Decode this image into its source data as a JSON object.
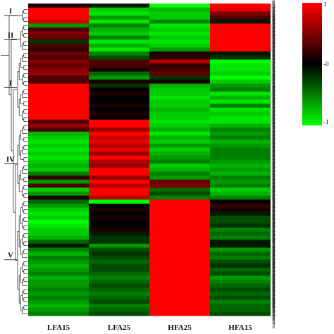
{
  "chart_data": {
    "type": "heatmap",
    "title": "",
    "xlabel": "",
    "ylabel": "",
    "columns": [
      "LFA15",
      "LFA25",
      "HFA25",
      "HFA15"
    ],
    "row_labels": [
      "BnaC08g37250D",
      "BnaA09g06420D",
      "BnaC09g05430D",
      "BnaA10g08810D",
      "BnaA02g06920D",
      "BnaC02g35460D",
      "BnaA02g33270D",
      "BnaA09g36170D",
      "BnaC05g44170D",
      "BnaCnng53370D",
      "BnaA02g33480D",
      "BnaC01g02940D",
      "BnaA02g38000D",
      "BnaA03g12790D",
      "BnaC05g33880D",
      "BnaA02g09410D",
      "BnaA01g07770D",
      "BnaA03g33420D",
      "BnaA03g21340D",
      "BnaA01g18440D",
      "BnaA03g09230D",
      "BnaA06g39230D",
      "BnaA06g27940D",
      "BnaA08g05600D",
      "BnaA02g01050D",
      "BnaA10g22600D",
      "BnaC02g40590D",
      "BnaA03g39650D",
      "BnaA01g02250D",
      "BnaA07g31260D",
      "BnaCnng26020D",
      "BnaC07g12530D",
      "BnaA05g28420D",
      "BnaC08g28410D",
      "BnaA04g24870D",
      "BnaA03g24650D",
      "BnaA03g14300D",
      "BnaA06g14920D",
      "BnaA03g32640D",
      "BnaA03g11220D",
      "BnaC03g13010D",
      "BnaA05g12670D",
      "BnaA05g27230D",
      "BnaA05g18010D",
      "BnaA02g30350D",
      "BnaA05g15470D",
      "BnaC06g23860D",
      "BnaA09g18680D",
      "BnaA03g50700D",
      "BnaA06g10260D",
      "BnaA05g12480D",
      "BnaC05g01950D",
      "BnaA09g50110D",
      "BnaA01g53020D",
      "BnaC09g31890D",
      "BnaC01g03290D",
      "BnaC01g07360D",
      "BnaA01g08100D",
      "BnaA10g01260D",
      "BnaA01g09240D",
      "BnaAnng19740D",
      "BnaA03g26380D",
      "BnaA08g43510D",
      "BnaA06g10700D",
      "BnaC09g47240D",
      "BnaA03g26920D",
      "BnaA07g24440D",
      "BnaC03g08600D",
      "BnaA06g06080D",
      "BnaA06g02030D",
      "BnaC08g37100D",
      "BnaC02g37100D",
      "BnaA07g24070D",
      "BnaC03g44800D",
      "BnaA05g28720D",
      "BnaA08g04430D",
      "BnaC03g35780D",
      "BnaA04g11240D"
    ],
    "values": [
      [
        0.1,
        -0.1,
        -1.0,
        1.0
      ],
      [
        1.0,
        -0.8,
        -0.7,
        0.9
      ],
      [
        1.0,
        -0.9,
        -0.8,
        0.5
      ],
      [
        1.0,
        -0.6,
        -0.8,
        0.3
      ],
      [
        0.8,
        -0.9,
        -0.5,
        -0.1
      ],
      [
        -0.6,
        -0.5,
        -0.9,
        1.0
      ],
      [
        0.3,
        -0.7,
        -0.8,
        1.0
      ],
      [
        0.5,
        -0.8,
        -0.9,
        1.0
      ],
      [
        0.4,
        -0.5,
        -0.8,
        1.0
      ],
      [
        -0.2,
        -0.9,
        -0.9,
        1.0
      ],
      [
        0.3,
        -0.7,
        -0.8,
        1.0
      ],
      [
        0.2,
        -0.9,
        -0.6,
        1.0
      ],
      [
        0.4,
        -0.5,
        0.1,
        -0.1
      ],
      [
        0.3,
        -0.3,
        0.2,
        -0.2
      ],
      [
        0.5,
        0.3,
        0.7,
        -1.0
      ],
      [
        0.4,
        0.3,
        0.2,
        -0.9
      ],
      [
        0.5,
        0.1,
        0.3,
        -0.9
      ],
      [
        0.6,
        -0.4,
        0.4,
        -0.8
      ],
      [
        0.3,
        -0.6,
        -0.2,
        -1.0
      ],
      [
        0.3,
        0.1,
        0.1,
        -0.8
      ],
      [
        1.0,
        -0.2,
        -0.7,
        -0.6
      ],
      [
        1.0,
        0.0,
        -0.8,
        -0.5
      ],
      [
        1.0,
        0.1,
        -0.8,
        -0.9
      ],
      [
        1.0,
        0.0,
        -0.9,
        -0.7
      ],
      [
        1.0,
        0.0,
        -0.8,
        -0.9
      ],
      [
        1.0,
        0.1,
        -0.8,
        -0.5
      ],
      [
        1.0,
        0.0,
        -0.7,
        -0.9
      ],
      [
        1.0,
        0.1,
        -0.8,
        -0.8
      ],
      [
        1.0,
        0.0,
        -0.8,
        -0.9
      ],
      [
        0.3,
        1.0,
        -0.9,
        -0.9
      ],
      [
        0.6,
        1.0,
        -0.8,
        -0.7
      ],
      [
        0.3,
        0.6,
        -0.7,
        -0.5
      ],
      [
        -0.7,
        1.0,
        -0.9,
        -0.6
      ],
      [
        -0.8,
        0.8,
        -0.7,
        -0.5
      ],
      [
        -0.9,
        0.9,
        -0.8,
        -0.7
      ],
      [
        -0.8,
        0.7,
        -0.6,
        -0.6
      ],
      [
        -0.9,
        0.9,
        -0.8,
        -0.5
      ],
      [
        -0.8,
        0.6,
        -0.7,
        -0.5
      ],
      [
        -0.9,
        1.0,
        -0.6,
        -0.5
      ],
      [
        -0.8,
        0.7,
        -0.5,
        -0.6
      ],
      [
        -0.7,
        0.6,
        -0.8,
        -0.7
      ],
      [
        -0.8,
        1.0,
        -0.7,
        -0.6
      ],
      [
        -0.5,
        1.0,
        -0.5,
        -0.7
      ],
      [
        0.2,
        0.6,
        -0.6,
        -0.5
      ],
      [
        -0.6,
        1.0,
        0.4,
        -0.6
      ],
      [
        0.3,
        0.7,
        0.5,
        -0.5
      ],
      [
        -0.8,
        1.0,
        -0.4,
        -0.8
      ],
      [
        -0.6,
        1.0,
        -0.3,
        -0.7
      ],
      [
        0.1,
        0.7,
        -0.5,
        -0.5
      ],
      [
        -0.4,
        -1.0,
        1.0,
        0.0
      ],
      [
        -0.6,
        0.0,
        1.0,
        0.2
      ],
      [
        -0.8,
        0.1,
        1.0,
        0.1
      ],
      [
        -0.9,
        0.0,
        1.0,
        -0.1
      ],
      [
        -0.8,
        0.1,
        1.0,
        -0.3
      ],
      [
        -1.0,
        0.0,
        1.0,
        -0.3
      ],
      [
        -0.9,
        0.0,
        1.0,
        -0.2
      ],
      [
        -0.8,
        0.1,
        1.0,
        -0.5
      ],
      [
        -0.8,
        -0.1,
        1.0,
        -0.4
      ],
      [
        -0.7,
        -0.2,
        1.0,
        -0.5
      ],
      [
        -0.4,
        -0.2,
        1.0,
        -0.1
      ],
      [
        -0.1,
        -0.6,
        1.0,
        -0.1
      ],
      [
        -0.5,
        -0.3,
        1.0,
        -0.6
      ],
      [
        -0.7,
        -0.2,
        1.0,
        -0.4
      ],
      [
        -0.5,
        -0.3,
        1.0,
        -0.5
      ],
      [
        -0.6,
        -0.4,
        1.0,
        -0.3
      ],
      [
        -0.7,
        -0.3,
        1.0,
        -0.2
      ],
      [
        -0.6,
        -0.3,
        1.0,
        -0.4
      ],
      [
        -0.5,
        -0.4,
        1.0,
        -0.3
      ],
      [
        -0.7,
        -0.5,
        1.0,
        -0.6
      ],
      [
        -0.6,
        -0.4,
        1.0,
        -0.5
      ],
      [
        -0.6,
        -0.3,
        1.0,
        -0.4
      ],
      [
        -0.5,
        -0.4,
        1.0,
        -0.3
      ],
      [
        -0.6,
        -0.5,
        1.0,
        -0.4
      ],
      [
        -0.5,
        -0.4,
        1.0,
        -0.3
      ],
      [
        -0.6,
        -0.3,
        1.0,
        -0.5
      ],
      [
        -0.7,
        -0.5,
        1.0,
        -0.4
      ],
      [
        -0.6,
        -0.4,
        1.0,
        -0.4
      ],
      [
        -0.5,
        -0.3,
        1.0,
        -0.3
      ]
    ],
    "clusters": [
      {
        "label": "I",
        "start": 1,
        "end": 4
      },
      {
        "label": "II",
        "start": 5,
        "end": 11
      },
      {
        "label": "I",
        "start": 12,
        "end": 29
      },
      {
        "label": "IV",
        "start": 30,
        "end": 48
      },
      {
        "label": "V",
        "start": 49,
        "end": 77
      }
    ],
    "colorbar": {
      "ticks": [
        {
          "value": 1,
          "label": "1"
        },
        {
          "value": 0,
          "label": "-0"
        },
        {
          "value": -1,
          "label": "-1"
        }
      ],
      "colors": {
        "high": "#ff0000",
        "mid": "#000000",
        "low": "#00ff00"
      }
    },
    "grid": false,
    "legend_position": "top-right"
  }
}
